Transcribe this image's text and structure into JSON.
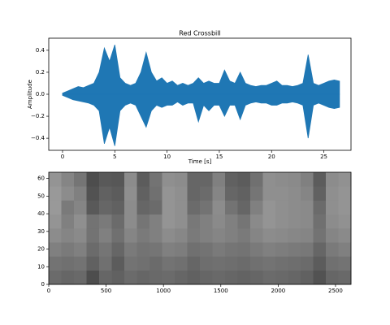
{
  "chart_data": [
    {
      "type": "area",
      "title": "Red Crossbill",
      "xlabel": "Time [s]",
      "ylabel": "Amplitude",
      "xlim": [
        -1.32,
        27.6
      ],
      "ylim": [
        -0.51,
        0.51
      ],
      "xticks": [
        0,
        5,
        10,
        15,
        20,
        25
      ],
      "yticks": [
        {
          "value": -0.4,
          "label": "−0.4"
        },
        {
          "value": -0.2,
          "label": "−0.2"
        },
        {
          "value": 0,
          "label": "0.0"
        },
        0.2,
        0.4
      ],
      "x": [
        0,
        0.5,
        1,
        1.5,
        2,
        2.5,
        3,
        3.5,
        4,
        4.5,
        5,
        5.5,
        6,
        6.5,
        7,
        7.5,
        8,
        8.5,
        9,
        9.5,
        10,
        10.5,
        11,
        11.5,
        12,
        12.5,
        13,
        13.5,
        14,
        14.5,
        15,
        15.5,
        16,
        16.5,
        17,
        17.5,
        18,
        18.5,
        19,
        19.5,
        20,
        20.5,
        21,
        21.5,
        22,
        22.5,
        23,
        23.5,
        24,
        24.5,
        25,
        25.5,
        26,
        26.5
      ],
      "series": [
        {
          "color": "#1f77b4",
          "values": [
            0.01,
            0.03,
            0.05,
            0.07,
            0.06,
            0.08,
            0.1,
            0.2,
            0.42,
            0.3,
            0.45,
            0.15,
            0.1,
            0.08,
            0.1,
            0.2,
            0.38,
            0.2,
            0.12,
            0.15,
            0.1,
            0.12,
            0.08,
            0.1,
            0.08,
            0.1,
            0.15,
            0.1,
            0.12,
            0.1,
            0.1,
            0.22,
            0.12,
            0.1,
            0.2,
            0.1,
            0.08,
            0.07,
            0.08,
            0.08,
            0.1,
            0.12,
            0.08,
            0.08,
            0.07,
            0.08,
            0.1,
            0.36,
            0.1,
            0.08,
            0.1,
            0.12,
            0.13,
            0.12
          ]
        },
        {
          "color": "#1f77b4",
          "values": [
            -0.01,
            -0.03,
            -0.05,
            -0.06,
            -0.07,
            -0.08,
            -0.1,
            -0.15,
            -0.45,
            -0.3,
            -0.47,
            -0.15,
            -0.1,
            -0.08,
            -0.1,
            -0.2,
            -0.3,
            -0.15,
            -0.1,
            -0.12,
            -0.1,
            -0.1,
            -0.07,
            -0.1,
            -0.08,
            -0.08,
            -0.25,
            -0.1,
            -0.15,
            -0.1,
            -0.1,
            -0.2,
            -0.1,
            -0.1,
            -0.23,
            -0.1,
            -0.08,
            -0.07,
            -0.08,
            -0.08,
            -0.1,
            -0.1,
            -0.08,
            -0.08,
            -0.07,
            -0.08,
            -0.1,
            -0.4,
            -0.1,
            -0.08,
            -0.1,
            -0.12,
            -0.13,
            -0.12
          ]
        }
      ]
    },
    {
      "type": "heatmap",
      "colormap": "gray",
      "xlim": [
        0,
        2635
      ],
      "ylim": [
        0,
        63.5
      ],
      "xticks": [
        0,
        500,
        1000,
        1500,
        2000,
        2500
      ],
      "yticks": [
        0,
        10,
        20,
        30,
        40,
        50,
        60
      ],
      "z": [
        [
          0.42,
          0.4,
          0.41,
          0.3,
          0.4,
          0.38,
          0.42,
          0.4,
          0.41,
          0.42,
          0.4,
          0.38,
          0.4,
          0.41,
          0.4,
          0.39,
          0.4,
          0.42,
          0.41,
          0.4,
          0.38,
          0.32,
          0.4,
          0.41
        ],
        [
          0.45,
          0.44,
          0.45,
          0.38,
          0.44,
          0.36,
          0.45,
          0.44,
          0.42,
          0.45,
          0.44,
          0.4,
          0.43,
          0.44,
          0.43,
          0.42,
          0.44,
          0.45,
          0.44,
          0.43,
          0.42,
          0.36,
          0.44,
          0.45
        ],
        [
          0.5,
          0.48,
          0.5,
          0.42,
          0.46,
          0.4,
          0.48,
          0.45,
          0.46,
          0.5,
          0.49,
          0.44,
          0.45,
          0.48,
          0.46,
          0.45,
          0.48,
          0.5,
          0.49,
          0.48,
          0.47,
          0.4,
          0.48,
          0.5
        ],
        [
          0.55,
          0.52,
          0.54,
          0.45,
          0.5,
          0.44,
          0.52,
          0.48,
          0.5,
          0.55,
          0.53,
          0.48,
          0.5,
          0.52,
          0.5,
          0.48,
          0.52,
          0.55,
          0.54,
          0.53,
          0.52,
          0.45,
          0.52,
          0.54
        ],
        [
          0.58,
          0.5,
          0.56,
          0.45,
          0.48,
          0.42,
          0.55,
          0.46,
          0.5,
          0.58,
          0.56,
          0.47,
          0.5,
          0.54,
          0.5,
          0.46,
          0.54,
          0.58,
          0.56,
          0.55,
          0.54,
          0.44,
          0.55,
          0.57
        ],
        [
          0.6,
          0.48,
          0.52,
          0.35,
          0.4,
          0.38,
          0.55,
          0.4,
          0.42,
          0.58,
          0.56,
          0.42,
          0.45,
          0.55,
          0.45,
          0.4,
          0.5,
          0.58,
          0.56,
          0.55,
          0.54,
          0.42,
          0.56,
          0.58
        ],
        [
          0.6,
          0.55,
          0.5,
          0.32,
          0.38,
          0.36,
          0.56,
          0.38,
          0.44,
          0.58,
          0.56,
          0.4,
          0.42,
          0.52,
          0.4,
          0.38,
          0.46,
          0.56,
          0.56,
          0.55,
          0.52,
          0.38,
          0.56,
          0.58
        ],
        [
          0.58,
          0.52,
          0.46,
          0.3,
          0.35,
          0.34,
          0.55,
          0.36,
          0.45,
          0.56,
          0.55,
          0.4,
          0.4,
          0.5,
          0.38,
          0.36,
          0.44,
          0.56,
          0.55,
          0.54,
          0.5,
          0.36,
          0.55,
          0.57
        ]
      ]
    }
  ]
}
